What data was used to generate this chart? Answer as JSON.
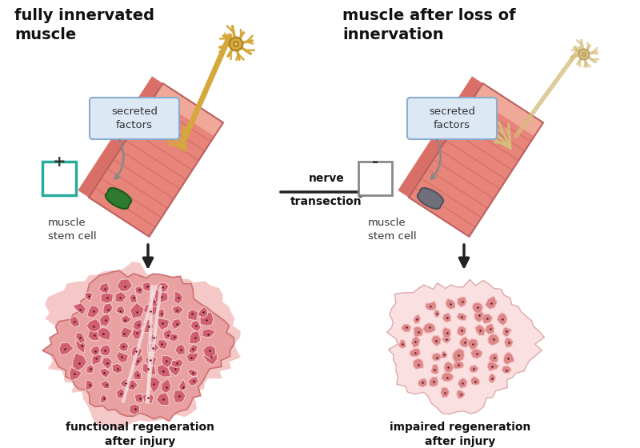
{
  "bg_color": "#ffffff",
  "title_left": "fully innervated\nmuscle",
  "title_right": "muscle after loss of\ninnervation",
  "label_secreted": "secreted\nfactors",
  "label_stem_left": "muscle\nstem cell",
  "label_stem_right": "muscle\nstem cell",
  "label_plus": "+",
  "label_minus": "-",
  "label_nerve": "nerve\ntransection",
  "label_bottom_left": "functional regeneration\nafter injury",
  "label_bottom_right": "impaired regeneration\nafter injury",
  "muscle_color": "#e8857a",
  "muscle_stripe_color": "#cc6a60",
  "muscle_end_color": "#d97068",
  "muscle_highlight": "#f0a898",
  "nerve_active_color": "#d4a83a",
  "nerve_active_dark": "#b08020",
  "nerve_faded_color": "#d4bc7a",
  "nerve_faded_dark": "#b09050",
  "stem_cell_green": "#2e7a2e",
  "stem_cell_gray": "#70707a",
  "plus_border": "#2aaa9a",
  "minus_border": "#888888",
  "regen_outer_left": "#f0b8b8",
  "regen_cell_left": "#cc6070",
  "regen_outer_right": "#f5c8c8",
  "regen_cell_right": "#d07878",
  "arrow_color": "#222222",
  "secreted_box_bg": "#dde8f5",
  "secreted_box_border": "#8aaccf"
}
